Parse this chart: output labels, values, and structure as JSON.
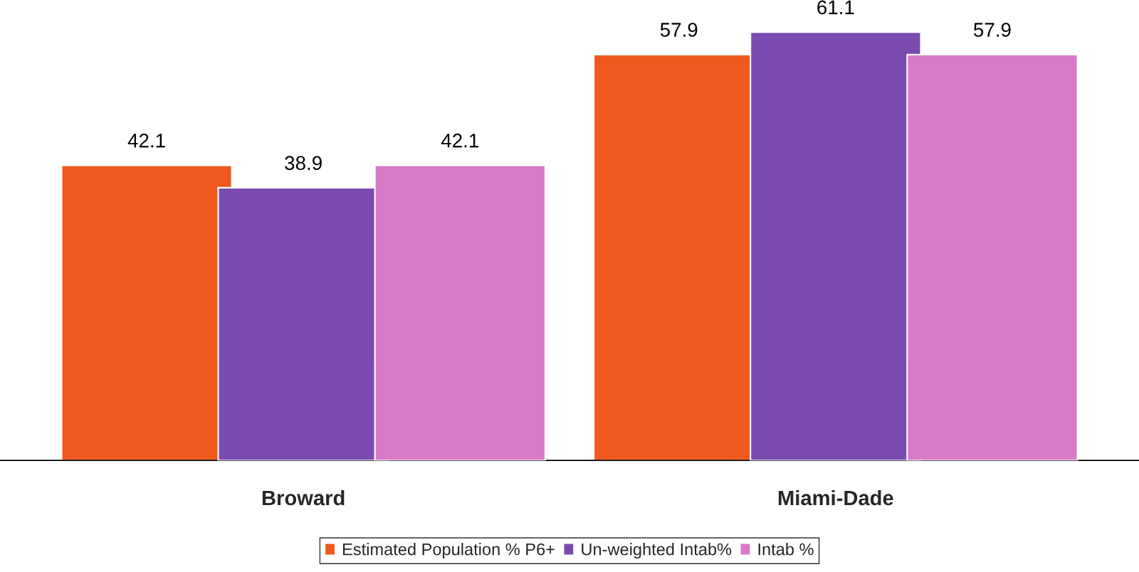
{
  "chart_data": {
    "type": "bar",
    "categories": [
      "Broward",
      "Miami-Dade"
    ],
    "series": [
      {
        "name": "Estimated Population % P6+",
        "color": "#ee5a1e",
        "values": [
          42.1,
          57.9
        ]
      },
      {
        "name": "Un-weighted Intab%",
        "color": "#7a4aae",
        "values": [
          38.9,
          61.1
        ]
      },
      {
        "name": "Intab %",
        "color": "#d77ac8",
        "values": [
          42.1,
          57.9
        ]
      }
    ],
    "data_labels": true,
    "legend": "bottom",
    "grid": false
  }
}
